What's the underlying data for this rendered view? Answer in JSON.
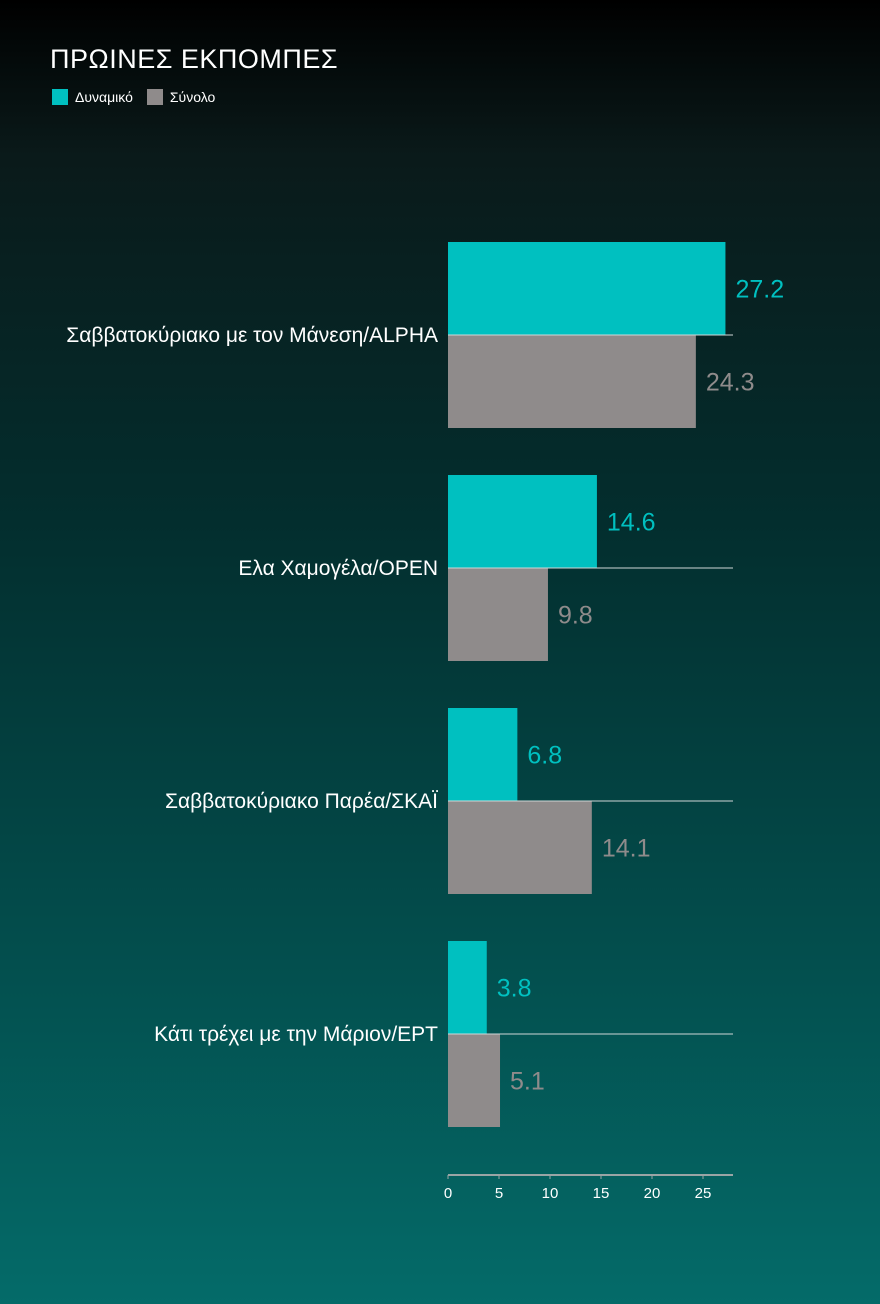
{
  "chart_data": {
    "type": "bar",
    "orientation": "horizontal",
    "title": "ΠΡΩΙΝΕΣ ΕΚΠΟΜΠΕΣ",
    "categories": [
      "Σαββατοκύριακο με τον Μάνεση/ALPHA",
      "Ελα Χαμογέλα/OPEN",
      "Σαββατοκύριακο Παρέα/ΣΚΑΪ",
      "Κάτι τρέχει με την Μάριον/ΕΡΤ"
    ],
    "series": [
      {
        "name": "Δυναμικό",
        "color": "#00c0c0",
        "label_color": "#00c0c0",
        "values": [
          27.2,
          14.6,
          6.8,
          3.8
        ]
      },
      {
        "name": "Σύνολο",
        "color": "#8f8b8b",
        "label_color": "#8f8b8b",
        "values": [
          24.3,
          9.8,
          14.1,
          5.1
        ]
      }
    ],
    "xlim": [
      0,
      28
    ],
    "xticks": [
      0,
      5,
      10,
      15,
      20,
      25
    ],
    "xlabel": "",
    "ylabel": "",
    "legend_position": "top-left",
    "grid": false
  },
  "colors": {
    "axis": "#9aa5a5",
    "text": "#ffffff"
  }
}
